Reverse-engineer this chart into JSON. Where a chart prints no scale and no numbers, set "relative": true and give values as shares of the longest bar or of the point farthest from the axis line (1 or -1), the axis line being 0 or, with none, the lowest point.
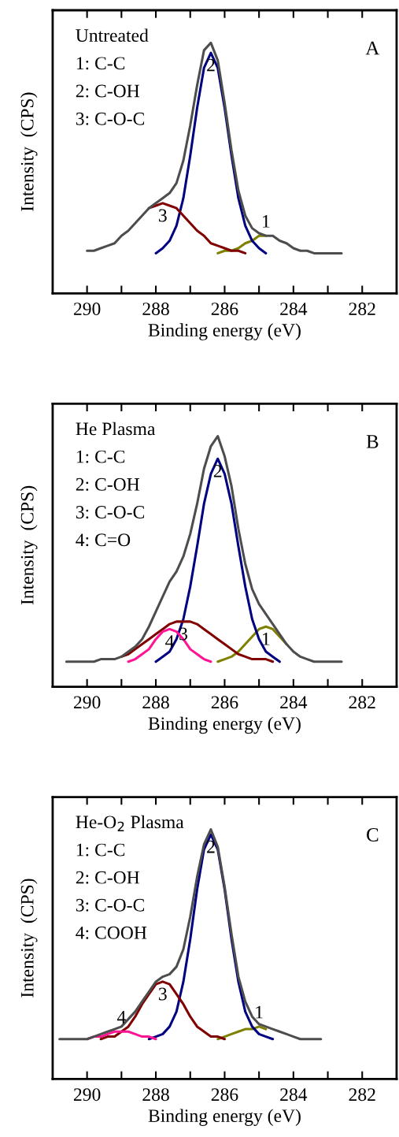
{
  "chart_data": [
    {
      "type": "line",
      "title": "Untreated",
      "subtitle": "A",
      "xlabel": "Binding energy (eV)",
      "ylabel": "Intensity  (CPS)",
      "relative": true,
      "tick_labels": "x",
      "xlim": [
        291,
        281
      ],
      "xticks": [
        290,
        {
          "value": 289,
          "label": null
        },
        288,
        {
          "value": 287,
          "label": null
        },
        286,
        {
          "value": 285,
          "label": null
        },
        284,
        {
          "value": 283,
          "label": null
        },
        282
      ],
      "x": [
        290.0,
        289.8,
        289.6,
        289.4,
        289.2,
        289.0,
        288.8,
        288.6,
        288.4,
        288.2,
        288.0,
        287.8,
        287.6,
        287.4,
        287.2,
        287.0,
        286.8,
        286.6,
        286.4,
        286.2,
        286.0,
        285.8,
        285.6,
        285.4,
        285.2,
        285.0,
        284.8,
        284.6,
        284.4,
        284.2,
        284.0,
        283.8,
        283.6,
        283.4,
        283.2,
        283.0,
        282.8,
        282.6
      ],
      "series": [
        {
          "color": "#808000",
          "values": [
            null,
            null,
            null,
            null,
            null,
            null,
            null,
            null,
            null,
            null,
            null,
            null,
            null,
            null,
            null,
            null,
            null,
            null,
            null,
            0.16,
            0.17,
            0.17,
            0.18,
            0.2,
            0.21,
            0.23,
            0.23,
            null,
            null,
            null,
            null,
            null,
            null,
            null,
            null,
            null,
            null,
            null
          ]
        },
        {
          "color": "#000080",
          "values": [
            null,
            null,
            null,
            null,
            null,
            null,
            null,
            null,
            null,
            null,
            0.16,
            0.18,
            0.21,
            0.27,
            0.38,
            0.55,
            0.74,
            0.9,
            0.96,
            0.9,
            0.74,
            0.55,
            0.38,
            0.27,
            0.21,
            0.18,
            0.16,
            null,
            null,
            null,
            null,
            null,
            null,
            null,
            null,
            null,
            null,
            null
          ]
        },
        {
          "color": "#800000",
          "values": [
            null,
            null,
            null,
            null,
            null,
            null,
            null,
            null,
            null,
            0.34,
            0.35,
            0.36,
            0.35,
            0.34,
            0.31,
            0.28,
            0.25,
            0.23,
            0.2,
            0.19,
            0.18,
            0.17,
            0.17,
            0.16,
            null,
            null,
            null,
            null,
            null,
            null,
            null,
            null,
            null,
            null,
            null,
            null,
            null,
            null
          ]
        },
        {
          "color": "#4d4d4d",
          "values": [
            0.17,
            0.17,
            0.18,
            0.19,
            0.2,
            0.23,
            0.25,
            0.28,
            0.31,
            0.34,
            0.36,
            0.38,
            0.4,
            0.44,
            0.53,
            0.67,
            0.83,
            0.97,
            1.0,
            0.93,
            0.76,
            0.57,
            0.41,
            0.31,
            0.26,
            0.24,
            0.23,
            0.23,
            0.21,
            0.2,
            0.18,
            0.17,
            0.17,
            0.16,
            0.16,
            0.16,
            0.16,
            0.16
          ]
        }
      ],
      "annotations": [
        "1: C-C",
        "2: C-OH",
        "3: C-O-C",
        {
          "text": "2",
          "x": 286.4,
          "y": 0.96
        },
        {
          "text": "3",
          "x": 287.8,
          "y": 0.36
        },
        {
          "text": "1",
          "x": 284.8,
          "y": 0.23
        }
      ]
    },
    {
      "type": "line",
      "title": "He Plasma",
      "subtitle": "B",
      "xlabel": "Binding energy (eV)",
      "ylabel": "Intensity  (CPS)",
      "relative": true,
      "tick_labels": "x",
      "xlim": [
        291,
        281
      ],
      "xticks": [
        290,
        {
          "value": 289,
          "label": null
        },
        288,
        {
          "value": 287,
          "label": null
        },
        286,
        {
          "value": 285,
          "label": null
        },
        284,
        {
          "value": 283,
          "label": null
        },
        282
      ],
      "x": [
        290.6,
        290.4,
        290.2,
        290.0,
        289.8,
        289.6,
        289.4,
        289.2,
        289.0,
        288.8,
        288.6,
        288.4,
        288.2,
        288.0,
        287.8,
        287.6,
        287.4,
        287.2,
        287.0,
        286.8,
        286.6,
        286.4,
        286.2,
        286.0,
        285.8,
        285.6,
        285.4,
        285.2,
        285.0,
        284.8,
        284.6,
        284.4,
        284.2,
        284.0,
        283.8,
        283.6,
        283.4,
        283.2,
        283.0,
        282.8,
        282.6
      ],
      "series": [
        {
          "color": "#808000",
          "values": [
            null,
            null,
            null,
            null,
            null,
            null,
            null,
            null,
            null,
            null,
            null,
            null,
            null,
            null,
            null,
            null,
            null,
            null,
            null,
            null,
            null,
            null,
            0.1,
            0.11,
            0.12,
            0.14,
            0.17,
            0.2,
            0.23,
            0.24,
            0.23,
            0.2,
            0.17,
            null,
            null,
            null,
            null,
            null,
            null,
            null,
            null
          ]
        },
        {
          "color": "#000080",
          "values": [
            null,
            null,
            null,
            null,
            null,
            null,
            null,
            null,
            null,
            null,
            null,
            null,
            null,
            0.1,
            0.12,
            0.14,
            0.19,
            0.27,
            0.4,
            0.56,
            0.73,
            0.85,
            0.91,
            0.85,
            0.73,
            0.56,
            0.4,
            0.27,
            0.19,
            0.14,
            0.12,
            0.1,
            null,
            null,
            null,
            null,
            null,
            null,
            null,
            null,
            null
          ]
        },
        {
          "color": "#800000",
          "values": [
            null,
            null,
            null,
            null,
            null,
            null,
            null,
            null,
            0.12,
            0.13,
            0.15,
            0.17,
            0.19,
            0.21,
            0.23,
            0.25,
            0.26,
            0.26,
            0.26,
            0.25,
            0.23,
            0.21,
            0.19,
            0.17,
            0.15,
            0.13,
            0.12,
            0.11,
            0.11,
            0.11,
            0.1,
            null,
            null,
            null,
            null,
            null,
            null,
            null,
            null,
            null,
            null
          ]
        },
        {
          "color": "#ff1493",
          "values": [
            null,
            null,
            null,
            null,
            null,
            null,
            null,
            null,
            null,
            0.1,
            0.11,
            0.13,
            0.15,
            0.19,
            0.22,
            0.23,
            0.22,
            0.19,
            0.15,
            0.13,
            0.11,
            0.1,
            null,
            null,
            null,
            null,
            null,
            null,
            null,
            null,
            null,
            null,
            null,
            null,
            null,
            null,
            null,
            null,
            null,
            null,
            null
          ]
        },
        {
          "color": "#4d4d4d",
          "values": [
            0.1,
            0.1,
            0.1,
            0.1,
            0.1,
            0.11,
            0.11,
            0.11,
            0.12,
            0.14,
            0.16,
            0.19,
            0.24,
            0.3,
            0.36,
            0.42,
            0.46,
            0.52,
            0.61,
            0.73,
            0.87,
            0.96,
            1.0,
            0.92,
            0.8,
            0.63,
            0.49,
            0.39,
            0.33,
            0.29,
            0.25,
            0.21,
            0.17,
            0.14,
            0.12,
            0.11,
            0.1,
            0.1,
            0.1,
            0.1,
            0.1
          ]
        }
      ],
      "annotations": [
        "1: C-C",
        "2: C-OH",
        "3: C-O-C",
        "4: C=O",
        {
          "text": "2",
          "x": 286.2,
          "y": 0.91
        },
        {
          "text": "3",
          "x": 287.2,
          "y": 0.26
        },
        {
          "text": "4",
          "x": 287.6,
          "y": 0.23
        },
        {
          "text": "1",
          "x": 284.8,
          "y": 0.24
        }
      ]
    },
    {
      "type": "line",
      "title": "He-O$_{2}$ Plasma",
      "subtitle": "C",
      "xlabel": "Binding energy (eV)",
      "ylabel": "Intensity  (CPS)",
      "relative": true,
      "tick_labels": "x",
      "xlim": [
        291,
        281
      ],
      "xticks": [
        290,
        {
          "value": 289,
          "label": null
        },
        288,
        {
          "value": 287,
          "label": null
        },
        286,
        {
          "value": 285,
          "label": null
        },
        284,
        {
          "value": 283,
          "label": null
        },
        282
      ],
      "x": [
        290.8,
        290.6,
        290.4,
        290.2,
        290.0,
        289.8,
        289.6,
        289.4,
        289.2,
        289.0,
        288.8,
        288.6,
        288.4,
        288.2,
        288.0,
        287.8,
        287.6,
        287.4,
        287.2,
        287.0,
        286.8,
        286.6,
        286.4,
        286.2,
        286.0,
        285.8,
        285.6,
        285.4,
        285.2,
        285.0,
        284.8,
        284.6,
        284.4,
        284.2,
        284.0,
        283.8,
        283.6,
        283.4,
        283.2
      ],
      "series": [
        {
          "color": "#808000",
          "values": [
            null,
            null,
            null,
            null,
            null,
            null,
            null,
            null,
            null,
            null,
            null,
            null,
            null,
            null,
            null,
            null,
            null,
            null,
            null,
            null,
            null,
            null,
            null,
            0.16,
            0.17,
            0.18,
            0.19,
            0.2,
            0.2,
            0.21,
            0.2,
            null,
            null,
            null,
            null,
            null,
            null,
            null,
            null
          ]
        },
        {
          "color": "#000080",
          "values": [
            null,
            null,
            null,
            null,
            null,
            null,
            null,
            null,
            null,
            null,
            null,
            null,
            null,
            0.16,
            0.17,
            0.18,
            0.21,
            0.27,
            0.39,
            0.56,
            0.76,
            0.92,
            0.98,
            0.92,
            0.76,
            0.56,
            0.39,
            0.27,
            0.21,
            0.18,
            0.17,
            0.16,
            null,
            null,
            null,
            null,
            null,
            null,
            null
          ]
        },
        {
          "color": "#800000",
          "values": [
            null,
            null,
            null,
            null,
            null,
            null,
            0.16,
            0.17,
            0.17,
            0.19,
            0.21,
            0.25,
            0.3,
            0.34,
            0.38,
            0.39,
            0.38,
            0.34,
            0.3,
            0.25,
            0.21,
            0.19,
            0.17,
            0.17,
            0.16,
            null,
            null,
            null,
            null,
            null,
            null,
            null,
            null,
            null,
            null,
            null,
            null,
            null,
            null
          ]
        },
        {
          "color": "#ff1493",
          "values": [
            null,
            null,
            null,
            null,
            0.16,
            0.17,
            0.17,
            0.18,
            0.19,
            0.19,
            0.19,
            0.18,
            0.17,
            0.17,
            0.16,
            null,
            null,
            null,
            null,
            null,
            null,
            null,
            null,
            null,
            null,
            null,
            null,
            null,
            null,
            null,
            null,
            null,
            null,
            null,
            null,
            null,
            null,
            null,
            null
          ]
        },
        {
          "color": "#4d4d4d",
          "values": [
            0.16,
            0.16,
            0.16,
            0.16,
            0.16,
            0.17,
            0.18,
            0.19,
            0.2,
            0.21,
            0.24,
            0.27,
            0.31,
            0.35,
            0.39,
            0.41,
            0.42,
            0.45,
            0.52,
            0.65,
            0.81,
            0.94,
            1.0,
            0.93,
            0.77,
            0.58,
            0.41,
            0.31,
            0.25,
            0.22,
            0.21,
            0.2,
            0.19,
            0.18,
            0.17,
            0.16,
            0.16,
            0.16,
            0.16
          ]
        }
      ],
      "annotations": [
        "1: C-C",
        "2: C-OH",
        "3: C-O-C",
        "4: COOH",
        {
          "text": "2",
          "x": 286.4,
          "y": 0.98
        },
        {
          "text": "3",
          "x": 287.8,
          "y": 0.39
        },
        {
          "text": "1",
          "x": 285.0,
          "y": 0.21
        },
        {
          "text": "4",
          "x": 289.0,
          "y": 0.19
        }
      ]
    }
  ]
}
